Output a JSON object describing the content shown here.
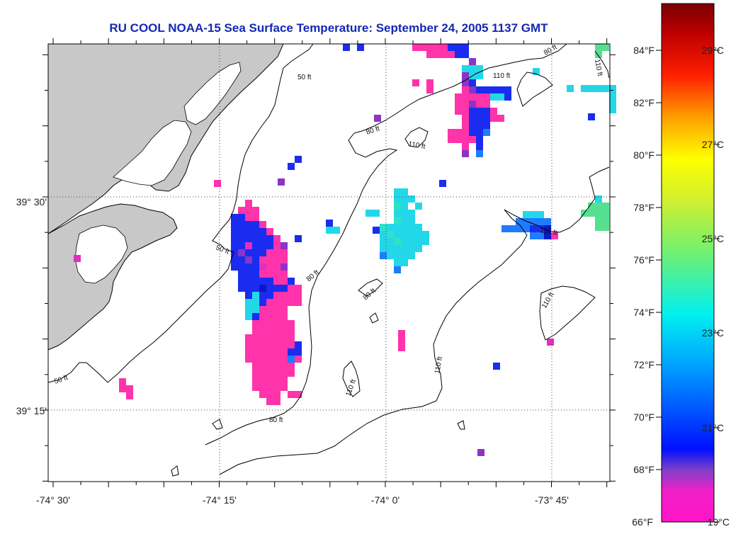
{
  "title": "RU COOL  NOAA-15  Sea Surface Temperature:  September 24, 2005 1137 GMT",
  "lat_labels": [
    "39° 30'",
    "39° 15'"
  ],
  "lon_labels": [
    "-74° 30'",
    "-74° 15'",
    "-74° 0'",
    "-73° 45'"
  ],
  "fahrenheit_labels": [
    "84°F",
    "82°F",
    "80°F",
    "78°F",
    "76°F",
    "74°F",
    "72°F",
    "70°F",
    "68°F",
    "66°F"
  ],
  "celsius_labels": [
    "29°C",
    "27°C",
    "25°C",
    "23°C",
    "21°C",
    "19°C"
  ],
  "contour_labels": {
    "c50a": "50 ft",
    "c50b": "50 ft",
    "c50c": "50 ft",
    "c80a": "80 ft",
    "c80b": "80 ft",
    "c80c": "80 ft",
    "c80d": "80 ft",
    "c80e": "80 ft",
    "c110a": "110 ft",
    "c110b": "110 ft",
    "c110c": "110 ft",
    "c110d": "110 ft",
    "c110e": "110 ft",
    "c110f": "110 ft",
    "c110g": "110 ft"
  },
  "colors": {
    "title": "#1428b4",
    "land": "#c8c8c8",
    "cold": "#ff33aa",
    "cool_blue": "#1a2cf0",
    "cyan": "#22d8e8",
    "green": "#55e090",
    "warm_red": "#8a0000"
  },
  "colorbar_stops": [
    "#ff14c8",
    "#ff30b4",
    "#8040c8",
    "#0010ff",
    "#0080ff",
    "#00e8ff",
    "#60f090",
    "#c0f040",
    "#ffff00",
    "#ffb000",
    "#ff3000",
    "#c00000",
    "#800000"
  ]
}
